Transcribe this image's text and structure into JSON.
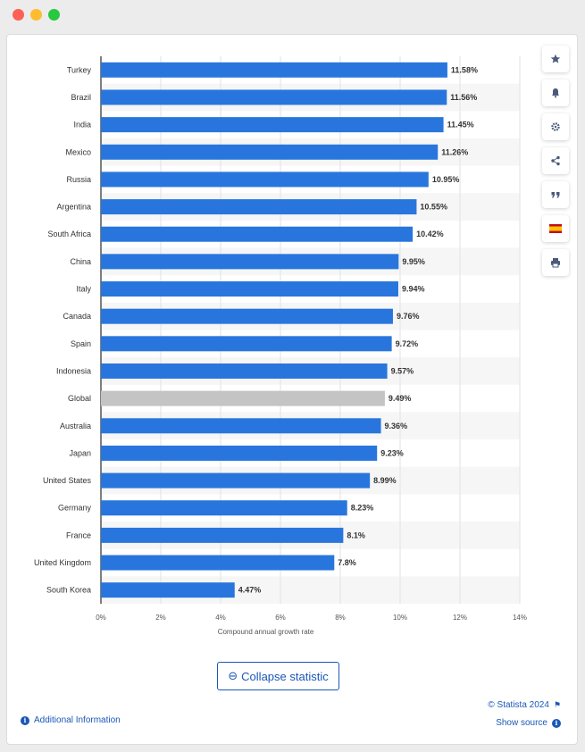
{
  "window": {
    "controls": [
      "close",
      "minimize",
      "maximize"
    ]
  },
  "chart_data": {
    "type": "bar",
    "orientation": "horizontal",
    "categories": [
      "Turkey",
      "Brazil",
      "India",
      "Mexico",
      "Russia",
      "Argentina",
      "South Africa",
      "China",
      "Italy",
      "Canada",
      "Spain",
      "Indonesia",
      "Global",
      "Australia",
      "Japan",
      "United States",
      "Germany",
      "France",
      "United Kingdom",
      "South Korea"
    ],
    "values": [
      11.58,
      11.56,
      11.45,
      11.26,
      10.95,
      10.55,
      10.42,
      9.95,
      9.94,
      9.76,
      9.72,
      9.57,
      9.49,
      9.36,
      9.23,
      8.99,
      8.23,
      8.1,
      7.8,
      4.47
    ],
    "value_labels": [
      "11.58%",
      "11.56%",
      "11.45%",
      "11.26%",
      "10.95%",
      "10.55%",
      "10.42%",
      "9.95%",
      "9.94%",
      "9.76%",
      "9.72%",
      "9.57%",
      "9.49%",
      "9.36%",
      "9.23%",
      "8.99%",
      "8.23%",
      "8.1%",
      "7.8%",
      "4.47%"
    ],
    "highlight_category": "Global",
    "xlim": [
      0,
      14
    ],
    "x_ticks": [
      "0%",
      "2%",
      "4%",
      "6%",
      "8%",
      "10%",
      "12%",
      "14%"
    ],
    "xlabel": "Compound annual growth rate",
    "ylabel": "",
    "grid": true,
    "colors": {
      "bar": "#2876dd",
      "highlight": "#c4c4c4",
      "stripe": "#f6f6f6",
      "grid": "#e2e2e2",
      "axis": "#000000",
      "text": "#333333"
    }
  },
  "toolbar": {
    "items": [
      {
        "name": "favorite",
        "icon": "star-icon"
      },
      {
        "name": "notification",
        "icon": "bell-icon"
      },
      {
        "name": "settings",
        "icon": "gear-icon"
      },
      {
        "name": "share",
        "icon": "share-icon"
      },
      {
        "name": "cite",
        "icon": "quote-icon"
      },
      {
        "name": "language",
        "icon": "spain-flag-icon"
      },
      {
        "name": "print",
        "icon": "print-icon"
      }
    ]
  },
  "actions": {
    "collapse_label": "Collapse statistic",
    "collapse_icon": "⊖"
  },
  "footer": {
    "additional_info": "Additional Information",
    "copyright": "© Statista 2024",
    "show_source": "Show source"
  },
  "accent_color": "#1a57b7"
}
